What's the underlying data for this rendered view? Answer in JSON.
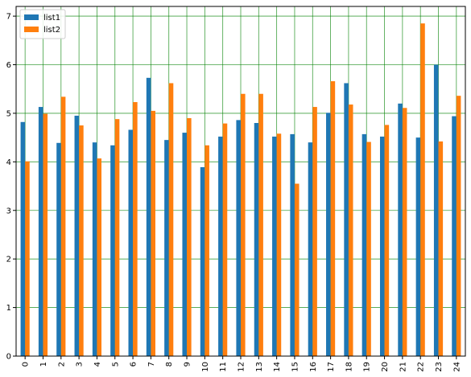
{
  "chart_data": {
    "type": "bar",
    "categories": [
      "0",
      "1",
      "2",
      "3",
      "4",
      "5",
      "6",
      "7",
      "8",
      "9",
      "10",
      "11",
      "12",
      "13",
      "14",
      "15",
      "16",
      "17",
      "18",
      "19",
      "20",
      "21",
      "22",
      "23",
      "24"
    ],
    "series": [
      {
        "name": "list1",
        "color": "#1f77b4",
        "values": [
          4.82,
          5.13,
          4.39,
          4.95,
          4.4,
          4.34,
          4.66,
          5.73,
          4.45,
          4.6,
          3.89,
          4.52,
          4.86,
          4.8,
          4.52,
          4.57,
          4.4,
          5.01,
          5.62,
          4.57,
          4.52,
          5.2,
          4.5,
          6.0,
          4.94
        ]
      },
      {
        "name": "list2",
        "color": "#ff7f0e",
        "values": [
          4.01,
          4.99,
          5.34,
          4.75,
          4.07,
          4.88,
          5.23,
          5.05,
          5.62,
          4.9,
          4.34,
          4.79,
          5.4,
          5.4,
          4.58,
          3.55,
          5.13,
          5.66,
          5.18,
          4.41,
          4.76,
          5.11,
          6.85,
          4.42,
          5.36
        ]
      }
    ],
    "title": "",
    "xlabel": "",
    "ylabel": "",
    "ylim": [
      0,
      7.2
    ],
    "yticks": [
      "0",
      "1",
      "2",
      "3",
      "4",
      "5",
      "6",
      "7"
    ],
    "grid": true,
    "grid_color": "#008000",
    "legend_position": "upper-left"
  }
}
